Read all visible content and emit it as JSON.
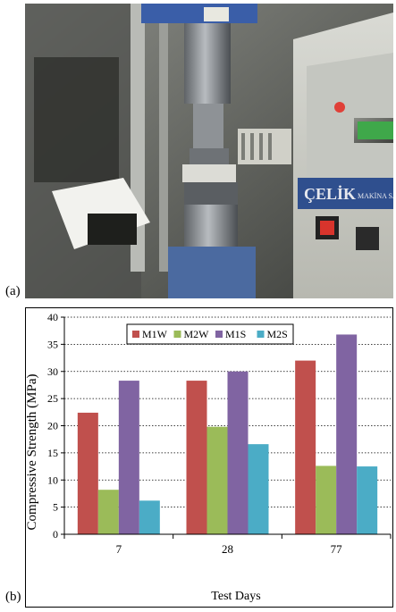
{
  "panels": {
    "a": {
      "label": "(a)",
      "photo": {
        "brand_text": "ÇELİK",
        "brand_sub": "MAKİNA SAN",
        "display_color": "#3fa84a"
      }
    },
    "b": {
      "label": "(b)"
    }
  },
  "chart_data": {
    "type": "bar",
    "title": "",
    "xlabel": "Test Days",
    "ylabel": "Compressive Strength (MPa)",
    "categories": [
      "7",
      "28",
      "77"
    ],
    "ylim": [
      0,
      40
    ],
    "yticks": [
      "0",
      "5",
      "10",
      "15",
      "20",
      "25",
      "30",
      "35",
      "40"
    ],
    "grid": "horizontal-dotted",
    "legend_position": "top-center",
    "series": [
      {
        "name": "M1W",
        "color": "#c0504d",
        "values": [
          22.4,
          28.3,
          32.0
        ]
      },
      {
        "name": "M2W",
        "color": "#9bbb59",
        "values": [
          8.2,
          19.8,
          12.6
        ]
      },
      {
        "name": "M1S",
        "color": "#8064a2",
        "values": [
          28.3,
          30.0,
          36.8
        ]
      },
      {
        "name": "M2S",
        "color": "#4bacc6",
        "values": [
          6.2,
          16.6,
          12.5
        ]
      }
    ]
  }
}
